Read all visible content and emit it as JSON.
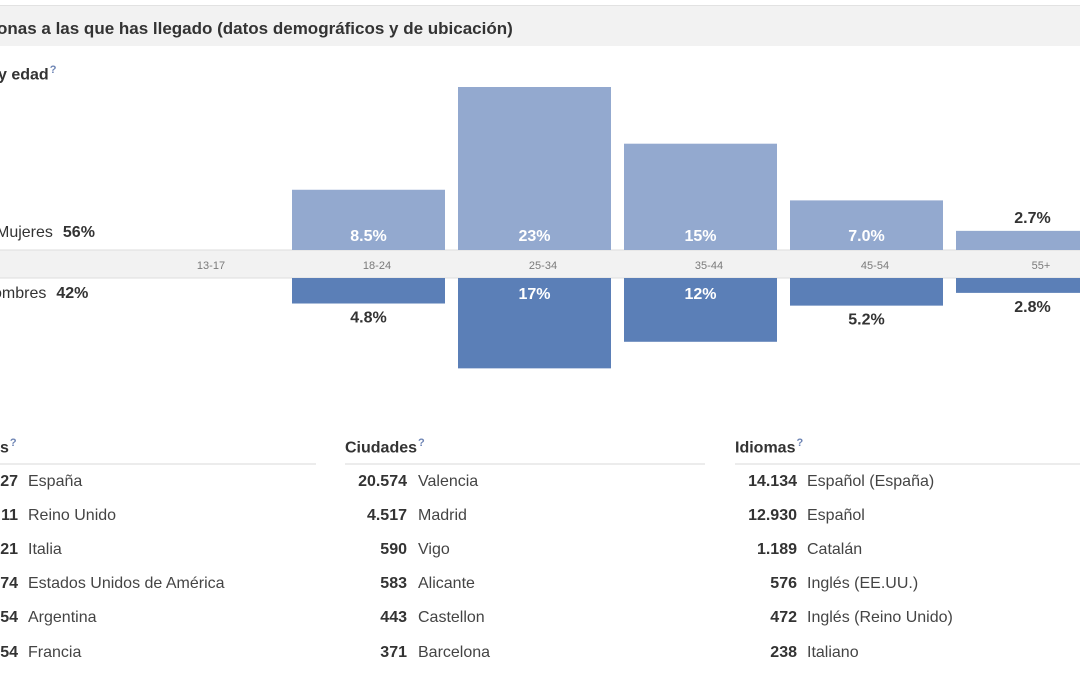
{
  "header": {
    "title": "onas a las que has llegado (datos demográficos y de ubicación)"
  },
  "demographics": {
    "section_title": "y edad",
    "help_mark": "?",
    "female": {
      "label": "Mujeres",
      "percent": "56%"
    },
    "male": {
      "label": "ombres",
      "percent": "42%"
    }
  },
  "chart_data": {
    "type": "bar",
    "categories": [
      "13-17",
      "18-24",
      "25-34",
      "35-44",
      "45-54",
      "55+"
    ],
    "series": [
      {
        "name": "Mujeres",
        "values": [
          0,
          8.5,
          23,
          15,
          7.0,
          2.7
        ],
        "labels": [
          "",
          "8.5%",
          "23%",
          "15%",
          "7.0%",
          "2.7%"
        ],
        "color": "#93a9cf"
      },
      {
        "name": "Hombres",
        "values": [
          0,
          4.8,
          17,
          12,
          5.2,
          2.8
        ],
        "labels": [
          "",
          "4.8%",
          "17%",
          "12%",
          "5.2%",
          "2.8%"
        ],
        "color": "#5b7fb7"
      }
    ],
    "ylim": [
      0,
      23
    ]
  },
  "countries": {
    "header": "s",
    "rows": [
      {
        "count": "27",
        "name": "España"
      },
      {
        "count": "11",
        "name": "Reino Unido"
      },
      {
        "count": "21",
        "name": "Italia"
      },
      {
        "count": "74",
        "name": "Estados Unidos de América"
      },
      {
        "count": "54",
        "name": "Argentina"
      },
      {
        "count": "54",
        "name": "Francia"
      }
    ]
  },
  "cities": {
    "header": "Ciudades",
    "rows": [
      {
        "count": "20.574",
        "name": "Valencia"
      },
      {
        "count": "4.517",
        "name": "Madrid"
      },
      {
        "count": "590",
        "name": "Vigo"
      },
      {
        "count": "583",
        "name": "Alicante"
      },
      {
        "count": "443",
        "name": "Castellon"
      },
      {
        "count": "371",
        "name": "Barcelona"
      }
    ]
  },
  "languages": {
    "header": "Idiomas",
    "rows": [
      {
        "count": "14.134",
        "name": "Español (España)"
      },
      {
        "count": "12.930",
        "name": "Español"
      },
      {
        "count": "1.189",
        "name": "Catalán"
      },
      {
        "count": "576",
        "name": "Inglés (EE.UU.)"
      },
      {
        "count": "472",
        "name": "Inglés (Reino Unido)"
      },
      {
        "count": "238",
        "name": "Italiano"
      }
    ]
  }
}
